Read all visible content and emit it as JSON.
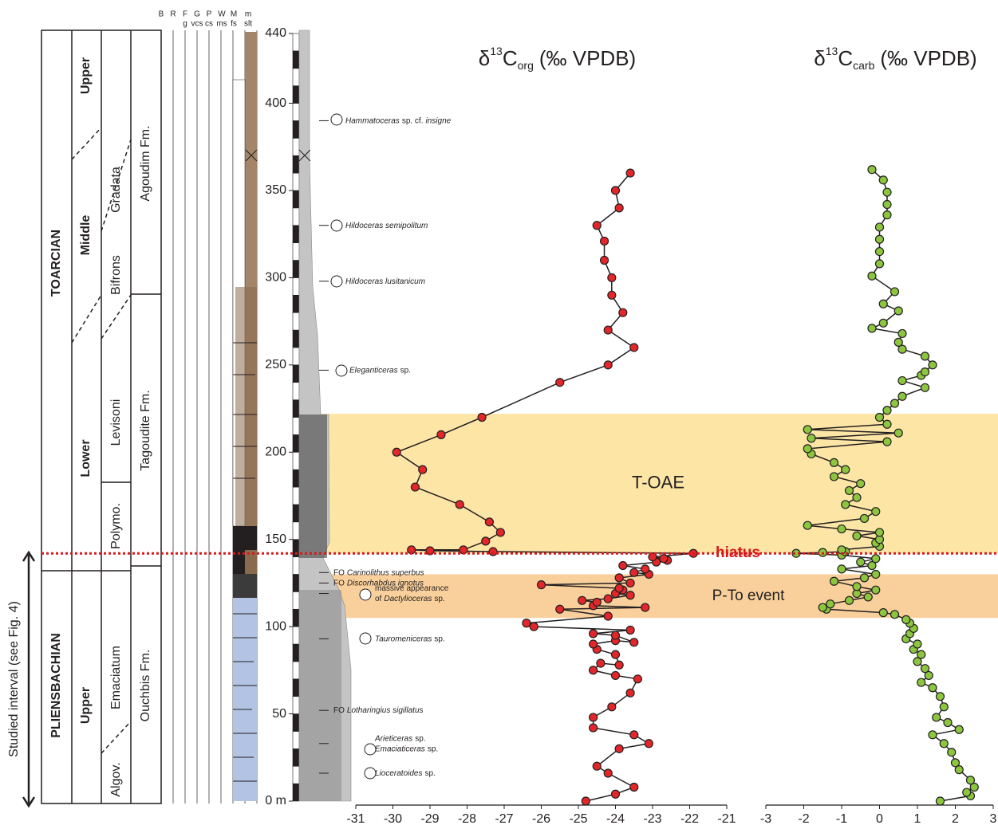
{
  "chart_data": [
    {
      "type": "line",
      "title": {
        "symbol": "δ",
        "isotope": "13",
        "element": "C",
        "subscript": "org",
        "unit": "(‰ VPDB)"
      },
      "xlim": [
        -31,
        -21
      ],
      "xticks": [
        -31,
        -30,
        -29,
        -28,
        -27,
        -26,
        -25,
        -24,
        -23,
        -22,
        -21
      ],
      "ylim": [
        0,
        440
      ],
      "yticks": [
        {
          "value": 0,
          "label": "0 m"
        },
        50,
        100,
        150,
        200,
        250,
        300,
        350,
        400,
        440
      ],
      "color": "#e3262a",
      "height": [
        0,
        4,
        8,
        16,
        20,
        30,
        33,
        38,
        42,
        48,
        54,
        62,
        70,
        72,
        75,
        79,
        78,
        84,
        87,
        90,
        92,
        91,
        95,
        96,
        98,
        100,
        102,
        106,
        110,
        111,
        112,
        114,
        115,
        116,
        118,
        119,
        121,
        122,
        124,
        125,
        128,
        130,
        131,
        133,
        135,
        137,
        138,
        139,
        140,
        142,
        143,
        143.5,
        144,
        144,
        149,
        154,
        160,
        170,
        180,
        190,
        200,
        210,
        220,
        240,
        250,
        260,
        270,
        280,
        290,
        300,
        310,
        321,
        330,
        340,
        350,
        360
      ],
      "values": [
        -24.8,
        -24.0,
        -23.5,
        -24.2,
        -24.5,
        -23.9,
        -23.1,
        -23.5,
        -24.6,
        -24.6,
        -24.1,
        -23.6,
        -23.4,
        -24.0,
        -24.6,
        -24.4,
        -23.9,
        -24.0,
        -24.5,
        -24.6,
        -24.0,
        -23.5,
        -24.0,
        -24.6,
        -23.6,
        -26.2,
        -26.4,
        -24.2,
        -25.5,
        -23.2,
        -24.6,
        -24.5,
        -24.9,
        -24.2,
        -23.6,
        -24.0,
        -23.8,
        -23.9,
        -26.0,
        -23.6,
        -23.9,
        -23.1,
        -23.5,
        -23.2,
        -23.8,
        -22.9,
        -22.6,
        -22.7,
        -23.0,
        -21.9,
        -27.3,
        -29.0,
        -29.5,
        -28.1,
        -27.5,
        -27.1,
        -27.4,
        -28.2,
        -29.4,
        -29.2,
        -29.9,
        -28.7,
        -27.6,
        -25.5,
        -24.2,
        -23.5,
        -24.2,
        -23.8,
        -24.1,
        -24.1,
        -24.3,
        -24.3,
        -24.5,
        -23.9,
        -24.0,
        -23.6
      ]
    },
    {
      "type": "line",
      "title": {
        "symbol": "δ",
        "isotope": "13",
        "element": "C",
        "subscript": "carb",
        "unit": "(‰ VPDB)"
      },
      "xlim": [
        -3,
        3
      ],
      "xticks": [
        -3,
        -2,
        -1,
        0,
        1,
        2,
        3
      ],
      "ylim": [
        0,
        440
      ],
      "color": "#8cc63f",
      "height": [
        0,
        3,
        5,
        8,
        12,
        18,
        22,
        28,
        33,
        38,
        41,
        45,
        48,
        54,
        60,
        65,
        68,
        72,
        76,
        80,
        84,
        87,
        90,
        93,
        96,
        99,
        102,
        104,
        107,
        108,
        110,
        111,
        113,
        115,
        117,
        119,
        121,
        123,
        126,
        128,
        130,
        133,
        135,
        137,
        139,
        141,
        142,
        142.5,
        143,
        144,
        146,
        148,
        150,
        152,
        154,
        156,
        158,
        162,
        166,
        170,
        174,
        178,
        182,
        186,
        190,
        194,
        199,
        202,
        206,
        208,
        211,
        213,
        216,
        220,
        224,
        228,
        232,
        237,
        241,
        244,
        246,
        250,
        255,
        259,
        263,
        268,
        271,
        274,
        281,
        285,
        292,
        301,
        308,
        315,
        322,
        329,
        336,
        342,
        349,
        356,
        362
      ],
      "values": [
        1.6,
        2.4,
        2.3,
        2.5,
        2.4,
        2.1,
        2.0,
        1.9,
        1.7,
        1.4,
        2.1,
        1.8,
        1.5,
        1.7,
        1.6,
        1.4,
        1.1,
        1.3,
        1.2,
        1.0,
        1.1,
        0.9,
        1.0,
        0.7,
        0.8,
        0.9,
        0.8,
        0.7,
        0.4,
        0.1,
        -1.4,
        -1.5,
        -1.3,
        -0.8,
        -0.3,
        -0.6,
        -0.1,
        -0.6,
        -1.2,
        -0.4,
        -0.1,
        -1.0,
        -0.2,
        -0.5,
        -0.1,
        -1.0,
        -2.2,
        -1.5,
        -0.9,
        -1.0,
        0.0,
        -0.1,
        0.0,
        -0.6,
        0.0,
        -1.0,
        -1.9,
        -0.4,
        -0.1,
        -0.9,
        -0.6,
        -0.8,
        -0.5,
        -1.2,
        -0.9,
        -1.2,
        -1.8,
        -1.9,
        0.2,
        -1.8,
        0.5,
        -1.9,
        0.2,
        0.0,
        0.2,
        0.4,
        0.6,
        1.2,
        0.6,
        1.1,
        1.2,
        1.4,
        1.2,
        0.6,
        0.5,
        0.6,
        -0.2,
        0.1,
        0.5,
        0.1,
        0.4,
        -0.2,
        0.0,
        0.0,
        0.0,
        0.0,
        0.2,
        0.2,
        0.2,
        0.1,
        -0.2
      ]
    }
  ],
  "events": {
    "bands": [
      {
        "label": "T-OAE",
        "range": [
          142,
          222
        ],
        "color": "#fde5a6"
      },
      {
        "label": "P-To event",
        "range": [
          105,
          130
        ],
        "color": "#f9d09b"
      }
    ],
    "hiatus": {
      "label": "hiatus",
      "height": 142,
      "color": "#d7191c"
    }
  },
  "stratigraphy": {
    "stages": [
      "TOARCIAN",
      "PLIENSBACHIAN"
    ],
    "substages": [
      "Upper",
      "Middle",
      "Lower",
      "Upper"
    ],
    "zones": [
      "Gradata",
      "Bifrons",
      "Levisoni",
      "Polymo.",
      "Emaciatum",
      "Algov."
    ],
    "formations": [
      "Agoudim Fm.",
      "Tagoudite Fm.",
      "Ouchbis Fm."
    ],
    "grain_size_top": [
      "B",
      "R",
      "F",
      "G",
      "P",
      "W",
      "M",
      "m"
    ],
    "grain_size_bottom": [
      "g",
      "vcs",
      "cs",
      "ms",
      "fs",
      "slt"
    ],
    "studied_interval": "Studied interval (see Fig. 4)"
  },
  "annotations": [
    {
      "height": 390,
      "lines": [
        [
          {
            "text": "Hammatoceras",
            "italic": true
          },
          {
            "text": "sp. cf.",
            "italic": false
          },
          {
            "text": "insigne",
            "italic": true
          }
        ]
      ]
    },
    {
      "height": 330,
      "lines": [
        [
          {
            "text": "Hildoceras semipolitum",
            "italic": true
          }
        ]
      ]
    },
    {
      "height": 298,
      "lines": [
        [
          {
            "text": "Hildoceras lusitanicum",
            "italic": true
          }
        ]
      ]
    },
    {
      "height": 247,
      "lines": [
        [
          {
            "text": "Eleganticeras",
            "italic": true
          },
          {
            "text": "sp.",
            "italic": false
          }
        ]
      ]
    },
    {
      "height": 131,
      "lines": [
        [
          {
            "text": "FO",
            "italic": false
          },
          {
            "text": "Carinolithus superbus",
            "italic": true
          }
        ]
      ]
    },
    {
      "height": 125,
      "lines": [
        [
          {
            "text": "FO",
            "italic": false
          },
          {
            "text": "Discorhabdus ignotus",
            "italic": true
          }
        ]
      ]
    },
    {
      "height": 119,
      "lines": [
        [
          {
            "text": "massive appearance",
            "italic": false
          }
        ],
        [
          {
            "text": "of",
            "italic": false
          },
          {
            "text": "Dactylioceras",
            "italic": true
          },
          {
            "text": "sp.",
            "italic": false
          }
        ]
      ]
    },
    {
      "height": 93,
      "lines": [
        [
          {
            "text": "Tauromeniceras",
            "italic": true
          },
          {
            "text": "sp.",
            "italic": false
          }
        ]
      ]
    },
    {
      "height": 52,
      "lines": [
        [
          {
            "text": "FO",
            "italic": false
          },
          {
            "text": "Lotharingius sigillatus",
            "italic": true
          }
        ]
      ]
    },
    {
      "height": 33,
      "lines": [
        [
          {
            "text": "Arieticeras",
            "italic": true
          },
          {
            "text": "sp.",
            "italic": false
          }
        ],
        [
          {
            "text": "Emaciaticeras",
            "italic": true
          },
          {
            "text": "sp.",
            "italic": false
          }
        ]
      ]
    },
    {
      "height": 16,
      "lines": [
        [
          {
            "text": "Lioceratoides",
            "italic": true
          },
          {
            "text": "sp.",
            "italic": false
          }
        ]
      ]
    }
  ]
}
